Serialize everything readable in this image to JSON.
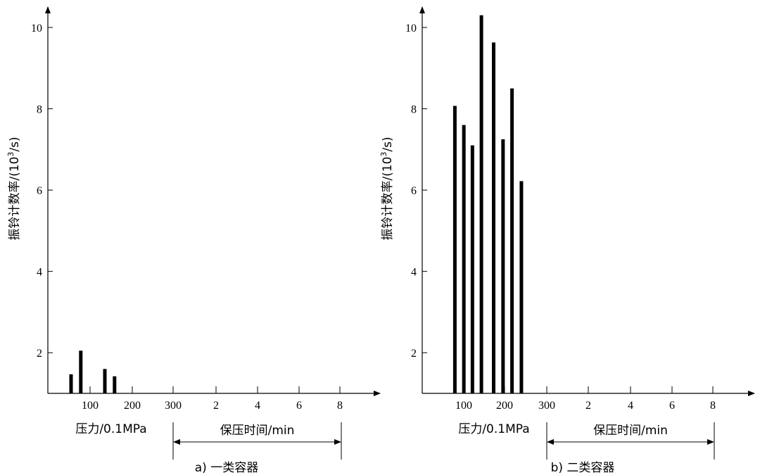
{
  "chart_data": [
    {
      "type": "bar",
      "panel_label": "a) 一类容器",
      "ylabel": "振铃计数率/(10³/s)",
      "ylabel_main": "振铃计数率/(10",
      "ylabel_sup": "3",
      "ylabel_tail": "/s)",
      "yticks": [
        "2",
        "4",
        "6",
        "8",
        "10"
      ],
      "ylim": [
        1,
        10.9
      ],
      "xticks_pressure": [
        "100",
        "200",
        "300"
      ],
      "xticks_time": [
        "2",
        "4",
        "6",
        "8"
      ],
      "pressure_label": "压力/0.1MPa",
      "time_label": "保压时间/min",
      "bars": [
        {
          "x": 115,
          "value": 1.47
        },
        {
          "x": 138,
          "value": 2.05
        },
        {
          "x": 195,
          "value": 1.6
        },
        {
          "x": 218,
          "value": 1.42
        }
      ]
    },
    {
      "type": "bar",
      "panel_label": "b) 二类容器",
      "ylabel": "振铃计数率/(10³/s)",
      "ylabel_main": "振铃计数率/(10",
      "ylabel_sup": "3",
      "ylabel_tail": "/s)",
      "yticks": [
        "2",
        "4",
        "6",
        "8",
        "10"
      ],
      "ylim": [
        1,
        10.9
      ],
      "xticks_pressure": [
        "100",
        "200",
        "300"
      ],
      "xticks_time": [
        "2",
        "4",
        "6",
        "8"
      ],
      "pressure_label": "压力/0.1MPa",
      "time_label": "保压时间/min",
      "bars": [
        {
          "x": 140,
          "value": 8.07
        },
        {
          "x": 162,
          "value": 7.6
        },
        {
          "x": 183,
          "value": 7.1
        },
        {
          "x": 205,
          "value": 10.3
        },
        {
          "x": 235,
          "value": 9.63
        },
        {
          "x": 258,
          "value": 7.25
        },
        {
          "x": 280,
          "value": 8.5
        },
        {
          "x": 303,
          "value": 6.22
        }
      ]
    }
  ]
}
